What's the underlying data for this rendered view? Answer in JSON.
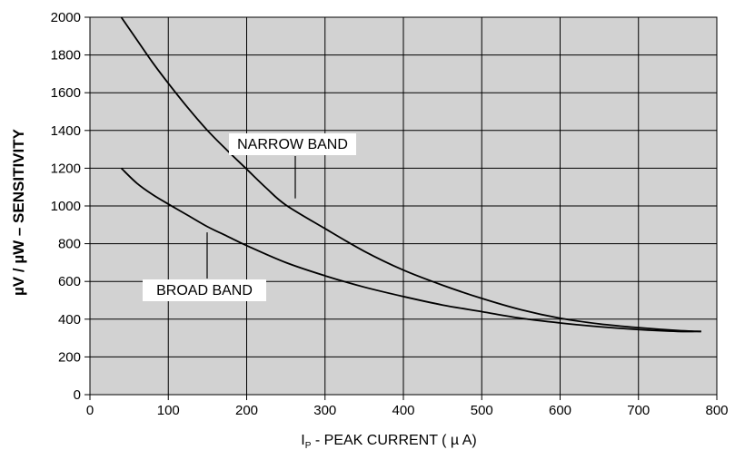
{
  "chart_data": {
    "type": "line",
    "xlabel_prefix": "I",
    "xlabel_sub": "P",
    "xlabel_rest": " - PEAK CURRENT (  µ A)",
    "ylabel": "µV / µW – SENSITIVITY",
    "xlim": [
      0,
      800
    ],
    "ylim": [
      0,
      2000
    ],
    "x_ticks": [
      0,
      100,
      200,
      300,
      400,
      500,
      600,
      700,
      800
    ],
    "y_ticks": [
      0,
      200,
      400,
      600,
      800,
      1000,
      1200,
      1400,
      1600,
      1800,
      2000
    ],
    "grid": true,
    "series": [
      {
        "name": "NARROW BAND",
        "x": [
          40,
          60,
          80,
          100,
          125,
          150,
          175,
          200,
          225,
          250,
          300,
          350,
          400,
          450,
          500,
          550,
          600,
          650,
          700,
          750,
          780
        ],
        "y": [
          2000,
          1880,
          1760,
          1650,
          1520,
          1400,
          1295,
          1195,
          1095,
          1005,
          880,
          760,
          660,
          580,
          510,
          450,
          405,
          375,
          355,
          340,
          335
        ]
      },
      {
        "name": "BROAD BAND",
        "x": [
          40,
          60,
          80,
          100,
          125,
          150,
          175,
          200,
          250,
          300,
          350,
          400,
          450,
          500,
          550,
          600,
          650,
          700,
          750,
          780
        ],
        "y": [
          1200,
          1120,
          1060,
          1010,
          950,
          890,
          840,
          790,
          700,
          630,
          570,
          520,
          475,
          440,
          405,
          380,
          360,
          345,
          335,
          335
        ]
      }
    ]
  }
}
